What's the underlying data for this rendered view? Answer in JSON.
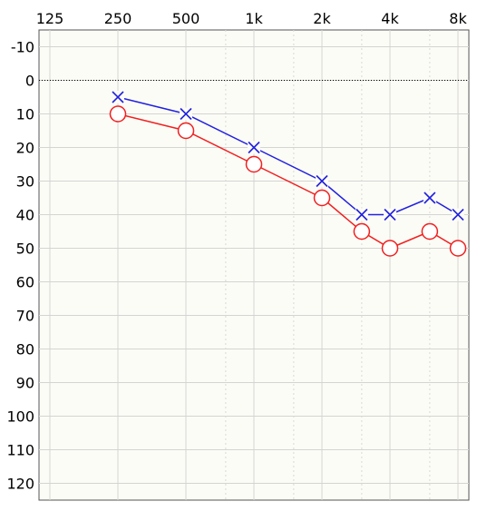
{
  "chart_data": {
    "type": "line",
    "title": "",
    "xlabel": "",
    "ylabel": "",
    "x_scale": "log",
    "y_inverted": true,
    "grid": true,
    "x_ticks": [
      {
        "value": 125,
        "label": "125"
      },
      {
        "value": 250,
        "label": "250"
      },
      {
        "value": 500,
        "label": "500"
      },
      {
        "value": 1000,
        "label": "1k"
      },
      {
        "value": 2000,
        "label": "2k"
      },
      {
        "value": 4000,
        "label": "4k"
      },
      {
        "value": 8000,
        "label": "8k"
      }
    ],
    "x_minor_ticks": [
      750,
      1500,
      3000,
      6000
    ],
    "y_ticks": [
      -10,
      0,
      10,
      20,
      30,
      40,
      50,
      60,
      70,
      80,
      90,
      100,
      110,
      120
    ],
    "xlim": [
      125,
      8000
    ],
    "ylim": [
      -15,
      125
    ],
    "reference_line": {
      "y": 0,
      "style": "dotted",
      "color": "#000000"
    },
    "series": [
      {
        "marker": "x",
        "color": "#2020e0",
        "points": [
          {
            "x": 250,
            "y": 5
          },
          {
            "x": 500,
            "y": 10
          },
          {
            "x": 1000,
            "y": 20
          },
          {
            "x": 2000,
            "y": 30
          },
          {
            "x": 3000,
            "y": 40
          },
          {
            "x": 4000,
            "y": 40
          },
          {
            "x": 6000,
            "y": 35
          },
          {
            "x": 8000,
            "y": 40
          }
        ]
      },
      {
        "marker": "circle",
        "color": "#f02020",
        "points": [
          {
            "x": 250,
            "y": 10
          },
          {
            "x": 500,
            "y": 15
          },
          {
            "x": 1000,
            "y": 25
          },
          {
            "x": 2000,
            "y": 35
          },
          {
            "x": 3000,
            "y": 45
          },
          {
            "x": 4000,
            "y": 50
          },
          {
            "x": 6000,
            "y": 45
          },
          {
            "x": 8000,
            "y": 50
          }
        ]
      }
    ]
  }
}
